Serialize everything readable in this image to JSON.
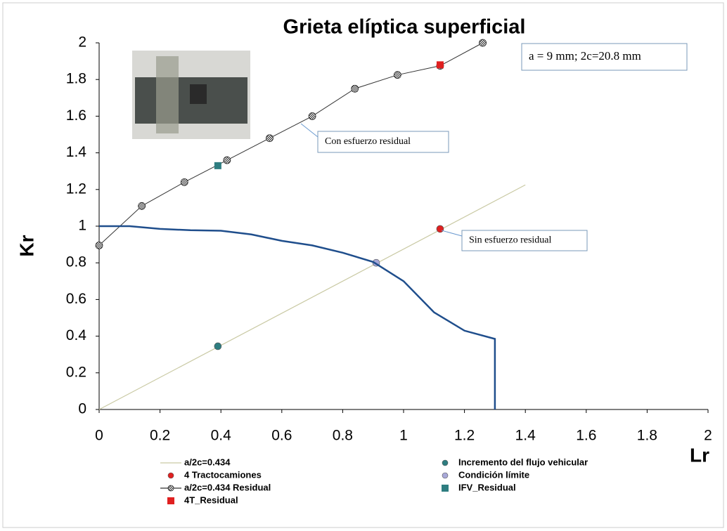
{
  "chart_data": {
    "type": "scatter",
    "title": "Grieta elíptica superficial",
    "xlabel": "Lr",
    "ylabel": "Kr",
    "xlim": [
      0,
      2
    ],
    "ylim": [
      0,
      2
    ],
    "xticks": [
      0,
      0.2,
      0.4,
      0.6,
      0.8,
      1,
      1.2,
      1.4,
      1.6,
      1.8,
      2
    ],
    "yticks": [
      0,
      0.2,
      0.4,
      0.6,
      0.8,
      1,
      1.2,
      1.4,
      1.6,
      1.8,
      2
    ],
    "series": [
      {
        "name": "a/2c=0.434",
        "color": "#c9c9a3",
        "style": "line",
        "x": [
          0,
          1.4
        ],
        "values": [
          0,
          1.225
        ]
      },
      {
        "name": "4 Tractocamiones",
        "color": "#e02020",
        "style": "circle",
        "x": [
          1.12
        ],
        "values": [
          0.985
        ]
      },
      {
        "name": "a/2c=0.434 Residual",
        "color": "#404040",
        "style": "checker",
        "x": [
          0,
          0.14,
          0.28,
          0.42,
          0.56,
          0.7,
          0.84,
          0.98,
          1.12,
          1.26
        ],
        "values": [
          0.895,
          1.11,
          1.24,
          1.36,
          1.48,
          1.6,
          1.75,
          1.825,
          1.875,
          2.0
        ]
      },
      {
        "name": "4T_Residual",
        "color": "#e02020",
        "style": "square",
        "x": [
          1.12
        ],
        "values": [
          1.88
        ]
      },
      {
        "name": "Incremento del flujo vehicular",
        "color": "#2e7d80",
        "style": "circle",
        "x": [
          0.39
        ],
        "values": [
          0.345
        ]
      },
      {
        "name": "Condición límite",
        "color": "#a8a8d8",
        "style": "circle",
        "x": [
          0.91
        ],
        "values": [
          0.8
        ]
      },
      {
        "name": "IFV_Residual",
        "color": "#2e7d80",
        "style": "square",
        "x": [
          0.39
        ],
        "values": [
          1.33
        ]
      },
      {
        "color": "#1f4e8c",
        "style": "thick",
        "x": [
          0,
          0.1,
          0.2,
          0.3,
          0.4,
          0.5,
          0.6,
          0.7,
          0.8,
          0.9,
          1.0,
          1.1,
          1.2,
          1.3,
          1.3
        ],
        "values": [
          1,
          1,
          0.985,
          0.978,
          0.975,
          0.955,
          0.92,
          0.895,
          0.855,
          0.805,
          0.7,
          0.53,
          0.43,
          0.385,
          0
        ]
      }
    ],
    "annotations": [
      "a = 9 mm; 2c=20.8 mm",
      "Con esfuerzo residual",
      "Sin esfuerzo residual"
    ]
  }
}
